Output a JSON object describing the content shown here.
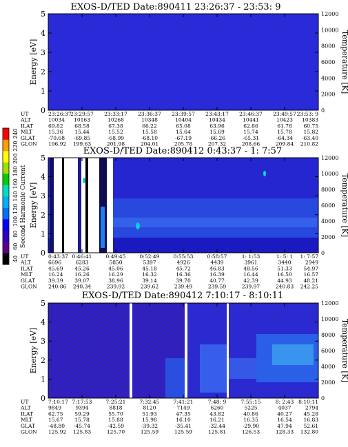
{
  "colors": {
    "panel_blue": "#2a2ad8",
    "deep_blue": "#1010b0",
    "mid_blue": "#2060e8",
    "cyan": "#00c8d8",
    "white": "#ffffff",
    "black": "#000000"
  },
  "colorbar": {
    "label": "Second Harmonic Current",
    "ticks": [
      "40",
      "60",
      "80",
      "100",
      "120",
      "140",
      "160",
      "180",
      "200",
      "220",
      "240"
    ],
    "colors": [
      "#000000",
      "#5a008a",
      "#3000c8",
      "#0000ff",
      "#0070ff",
      "#00b0ff",
      "#00e0c0",
      "#00d000",
      "#a0e000",
      "#ffff00",
      "#ffa000",
      "#ff0000"
    ]
  },
  "chart_data": [
    {
      "type": "heatmap",
      "title": "EXOS-D/TED  Date:890411  23:26:37 - 23:53: 9",
      "ylabel": "Energy [eV]",
      "y2label": "Temperature [K]",
      "ylim": [
        0,
        5
      ],
      "y2lim": [
        0,
        12000
      ],
      "yticks": [
        "0",
        "1",
        "2",
        "3",
        "4",
        "5"
      ],
      "y2ticks": [
        "0",
        "2000",
        "4000",
        "6000",
        "8000",
        "10000",
        "12000"
      ],
      "table": {
        "row_labels": [
          "UT",
          "ALT",
          "ILAT",
          "MLT",
          "GLAT",
          "GLON"
        ],
        "columns": [
          [
            "23:26:37",
            "10034",
            "69.82",
            "15.36",
            "-70.68",
            "196.92"
          ],
          [
            "23:29:57",
            "10163",
            "68.58",
            "15.44",
            "-69.85",
            "199.63"
          ],
          [
            "23:33:17",
            "10268",
            "67.38",
            "15.52",
            "-68.99",
            "201.98"
          ],
          [
            "23:36:37",
            "10348",
            "66.22",
            "15.58",
            "-68.10",
            "204.01"
          ],
          [
            "23:39:57",
            "10404",
            "65.08",
            "15.64",
            "-67.19",
            "205.78"
          ],
          [
            "23:43:17",
            "10434",
            "63.96",
            "15.69",
            "-66.26",
            "207.32"
          ],
          [
            "23:46:37",
            "10441",
            "62.86",
            "15.74",
            "-65.31",
            "208.66"
          ],
          [
            "23:49:57",
            "10423",
            "61.78",
            "15.78",
            "-64.34",
            "209.84"
          ],
          [
            "23:53: 9",
            "10383",
            "60.75",
            "15.82",
            "-63.40",
            "210.82"
          ]
        ]
      }
    },
    {
      "type": "heatmap",
      "title": "EXOS-D/TED   Date:890412   0:43:37 - 1: 7:57",
      "ylabel": "Energy [eV]",
      "y2label": "Temperature [K]",
      "ylim": [
        0,
        5
      ],
      "y2lim": [
        0,
        12000
      ],
      "yticks": [
        "0",
        "1",
        "2",
        "3",
        "4",
        "5"
      ],
      "y2ticks": [
        "0",
        "2000",
        "4000",
        "6000",
        "8000",
        "10000",
        "12000"
      ],
      "table": {
        "row_labels": [
          "UT",
          "ALT",
          "ILAT",
          "MLT",
          "GLAT",
          "GLON"
        ],
        "columns": [
          [
            "0:43:37",
            "6696",
            "45.69",
            "16.24",
            "39.39",
            "240.86"
          ],
          [
            "0:46:41",
            "6283",
            "45.26",
            "16.26",
            "39.07",
            "240.34"
          ],
          [
            "0:49:45",
            "5850",
            "45.06",
            "16.29",
            "38.96",
            "239.92"
          ],
          [
            "0:52:49",
            "5397",
            "45.18",
            "16.32",
            "39.14",
            "239.62"
          ],
          [
            "0:55:53",
            "4926",
            "45.72",
            "16.36",
            "39.70",
            "239.49"
          ],
          [
            "0:58:57",
            "4439",
            "46.83",
            "16.39",
            "40.77",
            "239.59"
          ],
          [
            "1: 1:53",
            "3961",
            "48.56",
            "16.44",
            "42.39",
            "239.97"
          ],
          [
            "1: 5: 1",
            "3440",
            "51.33",
            "16.50",
            "44.93",
            "240.83"
          ],
          [
            "1: 7:57",
            "2949",
            "54.97",
            "16.57",
            "48.21",
            "242.25"
          ]
        ]
      }
    },
    {
      "type": "heatmap",
      "title": "EXOS-D/TED   Date:890412   7:10:17 - 8:10:11",
      "ylabel": "Energy [eV]",
      "y2label": "Temperature [K]",
      "ylim": [
        0,
        5
      ],
      "y2lim": [
        0,
        12000
      ],
      "yticks": [
        "0",
        "1",
        "2",
        "3",
        "4",
        "5"
      ],
      "y2ticks": [
        "0",
        "2000",
        "4000",
        "6000",
        "8000",
        "10000",
        "12000"
      ],
      "table": {
        "row_labels": [
          "UT",
          "ALT",
          "ILAT",
          "MLT",
          "GLAT",
          "GLON"
        ],
        "columns": [
          [
            "7:10:17",
            "9849",
            "62.75",
            "15.67",
            "-48.80",
            "125.92"
          ],
          [
            "7:17:53",
            "9394",
            "59.29",
            "15.78",
            "-45.74",
            "125.83"
          ],
          [
            "7:25:21",
            "8818",
            "55.70",
            "15.88",
            "-42.59",
            "125.70"
          ],
          [
            "7:32:45",
            "8120",
            "51.93",
            "15.98",
            "-39.32",
            "125.59"
          ],
          [
            "7:41:21",
            "7149",
            "47.35",
            "16.10",
            "-35.41",
            "125.59"
          ],
          [
            "7:48: 9",
            "6260",
            "43.82",
            "16.21",
            "-32.44",
            "125.81"
          ],
          [
            "7:55:15",
            "5225",
            "40.86",
            "16.35",
            "-29.90",
            "126.53"
          ],
          [
            "8: 2:43",
            "4037",
            "40.27",
            "16.54",
            "47.94",
            "128.33"
          ],
          [
            "8:10:11",
            "2794",
            "45.28",
            "16.83",
            "52.61",
            "132.80"
          ]
        ]
      }
    }
  ]
}
